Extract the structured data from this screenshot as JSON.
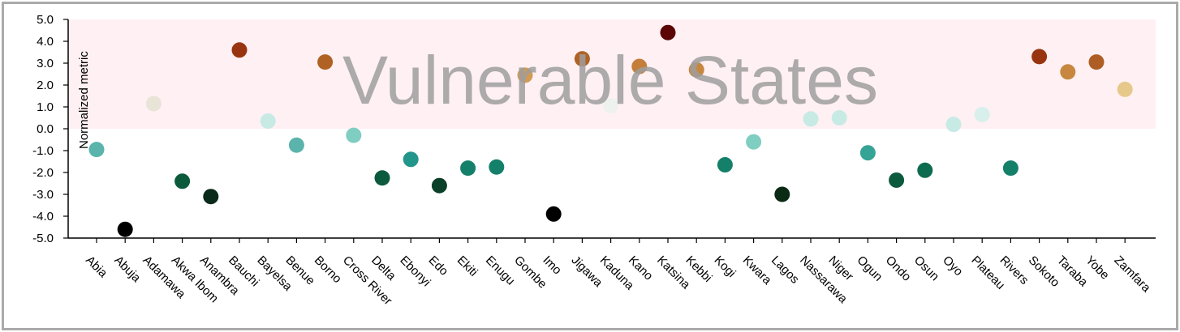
{
  "chart_data": {
    "type": "scatter",
    "title": "",
    "annotation": "Vulnerable States",
    "ylabel": "Normalized metric",
    "xlabel": "",
    "ylim": [
      -5.0,
      5.0
    ],
    "yticks": [
      "5.0",
      "4.0",
      "3.0",
      "2.0",
      "1.0",
      "0.0",
      "-1.0",
      "-2.0",
      "-3.0",
      "-4.0",
      "-5.0"
    ],
    "highlight_band": {
      "from": 0.0,
      "to": 5.0,
      "color": "#fff0f3"
    },
    "grid": false,
    "legend": "none",
    "categories": [
      "Abia",
      "Abuja",
      "Adamawa",
      "Akwa Ibom",
      "Anambra",
      "Bauchi",
      "Bayelsa",
      "Benue",
      "Borno",
      "Cross River",
      "Delta",
      "Ebonyi",
      "Edo",
      "Ekiti",
      "Enugu",
      "Gombe",
      "Imo",
      "Jigawa",
      "Kaduna",
      "Kano",
      "Katsina",
      "Kebbi",
      "Kogi",
      "Kwara",
      "Lagos",
      "Nassarawa",
      "Niger",
      "Ogun",
      "Ondo",
      "Osun",
      "Oyo",
      "Plateau",
      "Rivers",
      "Sokoto",
      "Taraba",
      "Yobe",
      "Zamfara"
    ],
    "values": [
      -0.95,
      -4.6,
      1.15,
      -2.4,
      -3.1,
      3.6,
      0.35,
      -0.75,
      3.05,
      -0.3,
      -2.25,
      -1.4,
      -2.6,
      -1.8,
      -1.75,
      2.45,
      -3.9,
      3.2,
      1.05,
      2.85,
      4.4,
      2.7,
      -1.65,
      -0.6,
      -3.0,
      0.45,
      0.5,
      -1.1,
      -2.35,
      -1.9,
      0.2,
      0.65,
      -1.8,
      3.3,
      2.6,
      3.05,
      1.8
    ],
    "colors": [
      "#5ab4ac",
      "#000000",
      "#e8e4d8",
      "#0b5a3c",
      "#0a2a1a",
      "#983510",
      "#c7eae5",
      "#5ab4ac",
      "#b06224",
      "#80cdc1",
      "#0c5a3e",
      "#22968a",
      "#0a3f2a",
      "#14806a",
      "#14806a",
      "#d29a55",
      "#000000",
      "#b06224",
      "#eef2ee",
      "#c47e3a",
      "#5c0505",
      "#c7873f",
      "#14806a",
      "#80cdc1",
      "#0a2a14",
      "#c7eae5",
      "#c7eae5",
      "#35a396",
      "#0c5a3e",
      "#0d6b4f",
      "#c7eae5",
      "#d8efec",
      "#14806a",
      "#983510",
      "#c7873f",
      "#ae5d24",
      "#e6c88a"
    ]
  }
}
